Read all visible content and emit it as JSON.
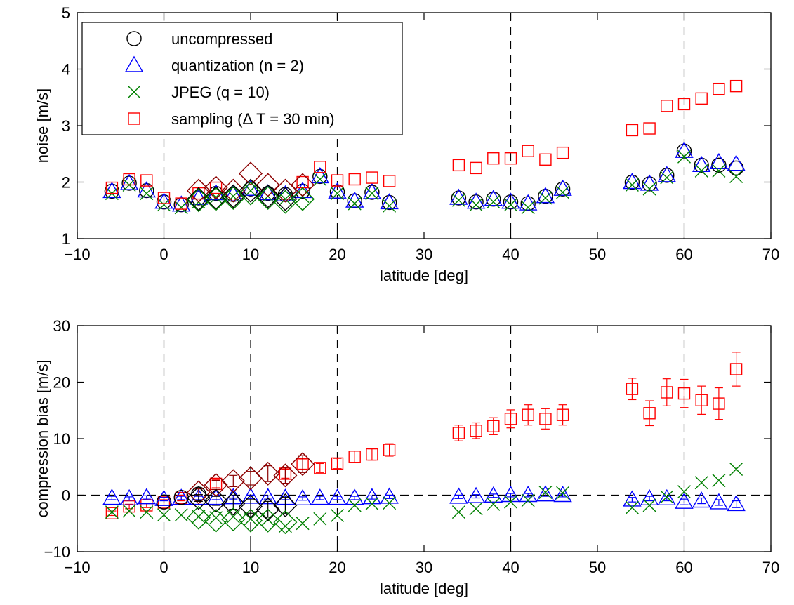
{
  "chart_data": [
    {
      "type": "scatter",
      "xlabel": "latitude [deg]",
      "ylabel": "noise [m/s]",
      "xlim": [
        -10,
        70
      ],
      "ylim": [
        1,
        5
      ],
      "xticks": [
        -10,
        0,
        10,
        20,
        30,
        40,
        50,
        60,
        70
      ],
      "yticks": [
        1,
        2,
        3,
        4,
        5
      ],
      "xtick_labels": [
        "−10",
        "0",
        "10",
        "20",
        "30",
        "40",
        "50",
        "60",
        "70"
      ],
      "ytick_labels": [
        "1",
        "2",
        "3",
        "4",
        "5"
      ],
      "grid": false,
      "reference_lines_x": [
        0,
        20,
        40,
        60
      ],
      "legend_position": "top-left",
      "legend": [
        {
          "label": "uncompressed",
          "marker": "circle",
          "color": "#000000"
        },
        {
          "label": "quantization (n = 2)",
          "marker": "triangle",
          "color": "#0000ff"
        },
        {
          "label": "JPEG (q = 10)",
          "marker": "x",
          "color": "#008000"
        },
        {
          "label": "sampling (Δ T = 30 min)",
          "marker": "square",
          "color": "#ff0000"
        }
      ],
      "series": [
        {
          "name": "uncompressed",
          "marker": "circle",
          "color": "#000000",
          "x": [
            -6,
            -4,
            -2,
            0,
            2,
            4,
            6,
            8,
            10,
            12,
            14,
            16,
            18,
            20,
            22,
            24,
            26,
            34,
            36,
            38,
            40,
            42,
            44,
            46,
            54,
            56,
            58,
            60,
            62,
            64,
            66
          ],
          "y": [
            1.84,
            1.98,
            1.85,
            1.65,
            1.6,
            1.72,
            1.8,
            1.78,
            1.88,
            1.8,
            1.78,
            1.84,
            2.1,
            1.83,
            1.67,
            1.82,
            1.64,
            1.72,
            1.65,
            1.7,
            1.65,
            1.62,
            1.75,
            1.88,
            2.0,
            1.97,
            2.12,
            2.55,
            2.3,
            2.3,
            2.25
          ]
        },
        {
          "name": "quantization (n = 2)",
          "marker": "triangle",
          "color": "#0000ff",
          "x": [
            -6,
            -4,
            -2,
            0,
            2,
            4,
            6,
            8,
            10,
            12,
            14,
            16,
            18,
            20,
            22,
            24,
            26,
            34,
            36,
            38,
            40,
            42,
            44,
            46,
            54,
            56,
            58,
            60,
            62,
            64,
            66
          ],
          "y": [
            1.84,
            1.98,
            1.85,
            1.65,
            1.6,
            1.72,
            1.8,
            1.78,
            1.88,
            1.8,
            1.78,
            1.84,
            2.1,
            1.83,
            1.67,
            1.82,
            1.64,
            1.72,
            1.65,
            1.7,
            1.65,
            1.62,
            1.75,
            1.88,
            2.0,
            1.97,
            2.12,
            2.55,
            2.3,
            2.35,
            2.32
          ]
        },
        {
          "name": "JPEG (q = 10)",
          "marker": "x",
          "color": "#008000",
          "x": [
            -6,
            -4,
            -2,
            0,
            2,
            4,
            6,
            8,
            10,
            12,
            14,
            16,
            18,
            20,
            22,
            24,
            26,
            34,
            36,
            38,
            40,
            42,
            44,
            46,
            54,
            56,
            58,
            60,
            62,
            64,
            66
          ],
          "y": [
            1.8,
            1.95,
            1.8,
            1.6,
            1.55,
            1.65,
            1.73,
            1.75,
            1.85,
            1.75,
            1.7,
            1.75,
            2.05,
            1.8,
            1.62,
            1.8,
            1.58,
            1.68,
            1.6,
            1.65,
            1.6,
            1.55,
            1.72,
            1.82,
            1.95,
            1.88,
            2.08,
            2.45,
            2.2,
            2.2,
            2.1
          ]
        },
        {
          "name": "sampling (Δ T = 30 min)",
          "marker": "square",
          "color": "#ff0000",
          "x": [
            -6,
            -4,
            -2,
            0,
            2,
            4,
            6,
            16,
            18,
            20,
            22,
            24,
            26,
            34,
            36,
            38,
            40,
            42,
            44,
            46,
            54,
            56,
            58,
            60,
            62,
            64,
            66
          ],
          "y": [
            1.9,
            2.05,
            2.03,
            1.72,
            1.62,
            1.8,
            1.9,
            2.0,
            2.27,
            2.03,
            2.05,
            2.08,
            2.02,
            2.3,
            2.25,
            2.42,
            2.42,
            2.55,
            2.4,
            2.52,
            2.92,
            2.95,
            3.35,
            3.38,
            3.48,
            3.65,
            3.7
          ]
        },
        {
          "name": "",
          "marker": "diamond",
          "color": "#8b0000",
          "x": [
            4,
            6,
            8,
            10,
            12,
            14,
            16
          ],
          "y": [
            1.85,
            1.9,
            1.85,
            2.15,
            1.95,
            1.85,
            1.95
          ]
        },
        {
          "name": "",
          "marker": "diamond",
          "color": "#000000",
          "x": [
            4,
            6,
            8,
            10,
            12,
            14
          ],
          "y": [
            1.7,
            1.72,
            1.75,
            1.85,
            1.75,
            1.7
          ]
        },
        {
          "name": "",
          "marker": "diamond",
          "color": "#008000",
          "x": [
            4,
            6,
            8,
            10,
            12,
            14,
            16
          ],
          "y": [
            1.68,
            1.7,
            1.72,
            1.8,
            1.72,
            1.65,
            1.7
          ]
        }
      ]
    },
    {
      "type": "scatter",
      "xlabel": "latitude [deg]",
      "ylabel": "compression bias [m/s]",
      "xlim": [
        -10,
        70
      ],
      "ylim": [
        -10,
        30
      ],
      "xticks": [
        -10,
        0,
        10,
        20,
        30,
        40,
        50,
        60,
        70
      ],
      "yticks": [
        -10,
        0,
        10,
        20,
        30
      ],
      "xtick_labels": [
        "−10",
        "0",
        "10",
        "20",
        "30",
        "40",
        "50",
        "60",
        "70"
      ],
      "ytick_labels": [
        "−10",
        "0",
        "10",
        "20",
        "30"
      ],
      "grid": false,
      "reference_lines_x": [
        0,
        10,
        20,
        40,
        60
      ],
      "reference_line_y": 0,
      "series": [
        {
          "name": "sampling (Δ T = 30 min)",
          "marker": "square",
          "color": "#ff0000",
          "error_bars": true,
          "x": [
            -6,
            -4,
            -2,
            0,
            2,
            6,
            14,
            16,
            18,
            20,
            22,
            24,
            26,
            34,
            36,
            38,
            40,
            42,
            44,
            46,
            54,
            56,
            58,
            60,
            62,
            64,
            66
          ],
          "y": [
            -3.2,
            -2.0,
            -1.8,
            -1.3,
            -0.5,
            2.0,
            3.8,
            5.5,
            4.8,
            5.6,
            6.8,
            7.2,
            8.0,
            11.0,
            11.4,
            12.2,
            13.5,
            14.2,
            13.5,
            14.2,
            18.8,
            14.5,
            18.2,
            18.0,
            16.8,
            16.2,
            22.3
          ],
          "err": [
            0.4,
            0.4,
            0.4,
            0.5,
            0.5,
            0.7,
            0.8,
            0.9,
            0.8,
            0.9,
            1.0,
            1.0,
            1.1,
            1.4,
            1.4,
            1.5,
            1.6,
            1.8,
            1.8,
            1.8,
            1.9,
            2.2,
            2.4,
            2.5,
            2.5,
            2.8,
            3.0
          ]
        },
        {
          "name": "quantization (n = 2)",
          "marker": "triangle",
          "color": "#0000ff",
          "error_bars": true,
          "x": [
            -6,
            -4,
            -2,
            0,
            2,
            4,
            6,
            8,
            10,
            12,
            14,
            16,
            18,
            20,
            22,
            24,
            26,
            34,
            36,
            38,
            40,
            42,
            44,
            46,
            54,
            56,
            58,
            60,
            62,
            64,
            66
          ],
          "y": [
            -0.5,
            -0.6,
            -0.4,
            -0.7,
            -0.5,
            -0.5,
            -0.5,
            -0.4,
            -0.3,
            -0.4,
            -0.5,
            -0.6,
            -0.5,
            -0.5,
            -0.5,
            -0.4,
            -0.3,
            -0.3,
            -0.2,
            -0.1,
            0.0,
            0.0,
            0.1,
            0.0,
            -0.8,
            -0.6,
            -0.6,
            -1.2,
            -1.0,
            -1.3,
            -1.6
          ],
          "err": [
            0.3,
            0.3,
            0.3,
            0.3,
            0.3,
            0.3,
            0.3,
            0.3,
            0.3,
            0.3,
            0.3,
            0.3,
            0.3,
            0.3,
            0.3,
            0.3,
            0.3,
            0.3,
            0.3,
            0.3,
            0.3,
            0.3,
            0.3,
            0.3,
            0.4,
            0.4,
            0.4,
            0.5,
            0.5,
            0.5,
            0.6
          ]
        },
        {
          "name": "JPEG (q = 10)",
          "marker": "x",
          "color": "#008000",
          "x": [
            -6,
            -4,
            -2,
            0,
            2,
            4,
            6,
            8,
            10,
            12,
            14,
            16,
            18,
            20,
            22,
            24,
            26,
            34,
            36,
            38,
            40,
            42,
            44,
            46,
            54,
            56,
            58,
            60,
            62,
            64,
            66
          ],
          "y": [
            -3.0,
            -2.8,
            -3.0,
            -3.5,
            -3.5,
            -3.8,
            -4.0,
            -3.8,
            -4.2,
            -4.3,
            -5.5,
            -5.0,
            -4.2,
            -3.6,
            -1.8,
            -1.5,
            -1.4,
            -3.0,
            -2.4,
            -1.6,
            -1.2,
            -0.9,
            0.5,
            0.4,
            -2.2,
            -1.8,
            -0.3,
            0.6,
            2.2,
            2.6,
            4.6
          ]
        },
        {
          "name": "uncompressed",
          "marker": "circle",
          "color": "#000000",
          "x": [
            0,
            2,
            4
          ],
          "y": [
            -1.2,
            -0.4,
            0.2
          ]
        },
        {
          "name": "",
          "marker": "diamond",
          "color": "#8b0000",
          "error_bars": true,
          "x": [
            4,
            6,
            8,
            10,
            12,
            14,
            16
          ],
          "y": [
            0.5,
            1.8,
            2.5,
            3.0,
            3.8,
            3.5,
            5.5
          ],
          "err": [
            0.6,
            0.8,
            1.0,
            1.2,
            1.4,
            1.4,
            1.5
          ]
        },
        {
          "name": "",
          "marker": "diamond",
          "color": "#000000",
          "error_bars": true,
          "x": [
            4,
            6,
            8,
            10,
            12,
            14
          ],
          "y": [
            -0.5,
            -1.0,
            -1.5,
            -2.0,
            -2.5,
            -1.8
          ],
          "err": [
            0.6,
            0.8,
            1.0,
            1.2,
            1.4,
            1.4
          ]
        },
        {
          "name": "",
          "marker": "diamond",
          "color": "#008000",
          "x": [
            4,
            6,
            8,
            10,
            12,
            14
          ],
          "y": [
            -4.0,
            -4.5,
            -4.3,
            -4.5,
            -4.5,
            -4.8
          ]
        }
      ]
    }
  ]
}
